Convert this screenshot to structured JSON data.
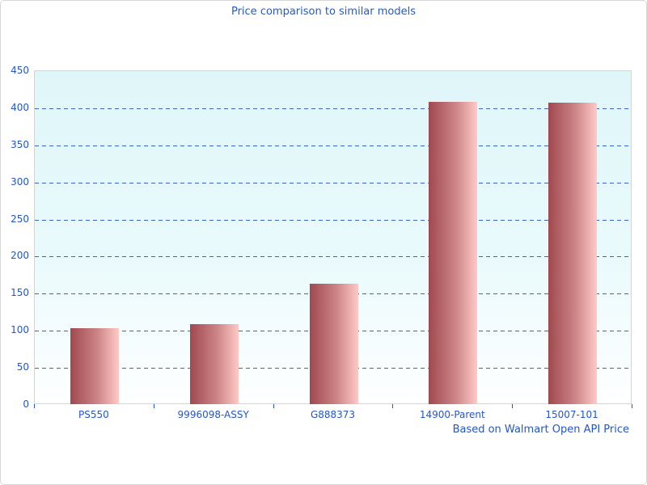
{
  "chart_data": {
    "type": "bar",
    "title": "Price comparison to similar models",
    "caption": "Based on Walmart Open API Price",
    "categories": [
      "PS550",
      "9996098-ASSY",
      "G888373",
      "14900-Parent",
      "15007-101"
    ],
    "values": [
      104,
      109,
      163,
      409,
      407
    ],
    "xlabel": "",
    "ylabel": "",
    "ylim": [
      0,
      450
    ],
    "yticks": [
      0,
      50,
      100,
      150,
      200,
      250,
      300,
      350,
      400,
      450
    ],
    "grid": "horizontal-dashed",
    "legend_position": "none",
    "colors": {
      "title_text": "#1b5be0",
      "axis_text": "#2356cc",
      "gridline": "#3a63c8",
      "bar_gradient_left": "#a0494f",
      "bar_gradient_right": "#ffc9c6",
      "plot_bg_top": "#dff6f9",
      "plot_bg_bottom": "#feffff",
      "plot_border": "#d4d4d4"
    }
  }
}
